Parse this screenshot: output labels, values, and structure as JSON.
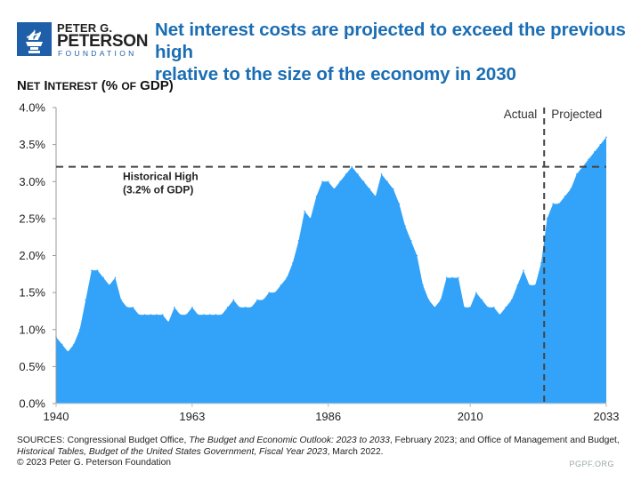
{
  "header": {
    "logo": {
      "line1": "PETER G.",
      "line2": "PETERSON",
      "line3": "FOUNDATION",
      "icon": "torch-icon",
      "brand_color": "#1f5ea8"
    },
    "headline_line1": "Net interest costs are projected to exceed the previous high",
    "headline_line2": "relative to the size of the economy in 2030",
    "headline_color": "#1b6eb4"
  },
  "chart_data": {
    "type": "area",
    "title": "Net interest costs are projected to exceed the previous high relative to the size of the economy in 2030",
    "ylabel_main": "Net Interest",
    "ylabel_unit": "(% of GDP)",
    "xlabel": "",
    "xlim": [
      1940,
      2033
    ],
    "ylim": [
      0,
      4.0
    ],
    "x_ticks": [
      1940,
      1963,
      1986,
      2010,
      2033
    ],
    "y_ticks": [
      0.0,
      0.5,
      1.0,
      1.5,
      2.0,
      2.5,
      3.0,
      3.5,
      4.0
    ],
    "y_tick_labels": [
      "0.0%",
      "0.5%",
      "1.0%",
      "1.5%",
      "2.0%",
      "2.5%",
      "3.0%",
      "3.5%",
      "4.0%"
    ],
    "grid": false,
    "fill_color": "#33a3fa",
    "series": [
      {
        "name": "Net Interest (% of GDP)",
        "x": [
          1940,
          1941,
          1942,
          1943,
          1944,
          1945,
          1946,
          1947,
          1948,
          1949,
          1950,
          1951,
          1952,
          1953,
          1954,
          1955,
          1956,
          1957,
          1958,
          1959,
          1960,
          1961,
          1962,
          1963,
          1964,
          1965,
          1966,
          1967,
          1968,
          1969,
          1970,
          1971,
          1972,
          1973,
          1974,
          1975,
          1976,
          1977,
          1978,
          1979,
          1980,
          1981,
          1982,
          1983,
          1984,
          1985,
          1986,
          1987,
          1988,
          1989,
          1990,
          1991,
          1992,
          1993,
          1994,
          1995,
          1996,
          1997,
          1998,
          1999,
          2000,
          2001,
          2002,
          2003,
          2004,
          2005,
          2006,
          2007,
          2008,
          2009,
          2010,
          2011,
          2012,
          2013,
          2014,
          2015,
          2016,
          2017,
          2018,
          2019,
          2020,
          2021,
          2022,
          2023,
          2024,
          2025,
          2026,
          2027,
          2028,
          2029,
          2030,
          2031,
          2032,
          2033
        ],
        "values": [
          0.9,
          0.8,
          0.7,
          0.8,
          1.0,
          1.4,
          1.8,
          1.8,
          1.7,
          1.6,
          1.7,
          1.4,
          1.3,
          1.3,
          1.2,
          1.2,
          1.2,
          1.2,
          1.2,
          1.1,
          1.3,
          1.2,
          1.2,
          1.3,
          1.2,
          1.2,
          1.2,
          1.2,
          1.2,
          1.3,
          1.4,
          1.3,
          1.3,
          1.3,
          1.4,
          1.4,
          1.5,
          1.5,
          1.6,
          1.7,
          1.9,
          2.2,
          2.6,
          2.5,
          2.8,
          3.0,
          3.0,
          2.9,
          3.0,
          3.1,
          3.2,
          3.1,
          3.0,
          2.9,
          2.8,
          3.1,
          3.0,
          2.9,
          2.7,
          2.4,
          2.2,
          2.0,
          1.6,
          1.4,
          1.3,
          1.4,
          1.7,
          1.7,
          1.7,
          1.3,
          1.3,
          1.5,
          1.4,
          1.3,
          1.3,
          1.2,
          1.3,
          1.4,
          1.6,
          1.8,
          1.6,
          1.6,
          1.9,
          2.5,
          2.7,
          2.7,
          2.8,
          2.9,
          3.1,
          3.2,
          3.3,
          3.4,
          3.5,
          3.6
        ]
      }
    ],
    "reference_lines": [
      {
        "type": "horizontal",
        "value": 3.2,
        "style": "dashed",
        "label_line1": "Historical High",
        "label_line2": "(3.2% of GDP)"
      },
      {
        "type": "vertical",
        "value": 2022.5,
        "style": "dashed",
        "left_label": "Actual",
        "right_label": "Projected"
      }
    ]
  },
  "footer": {
    "sources_prefix": "SOURCES: Congressional Budget Office, ",
    "sources_title1": "The Budget and Economic Outlook: 2023 to 2033",
    "sources_mid": ", February 2023; and Office of Management and Budget,",
    "sources_title2": "Historical Tables, Budget of the United States Government, Fiscal Year 2023",
    "sources_end": ", March 2022.",
    "copyright": "© 2023 Peter G. Peterson Foundation",
    "website": "PGPF.ORG"
  }
}
